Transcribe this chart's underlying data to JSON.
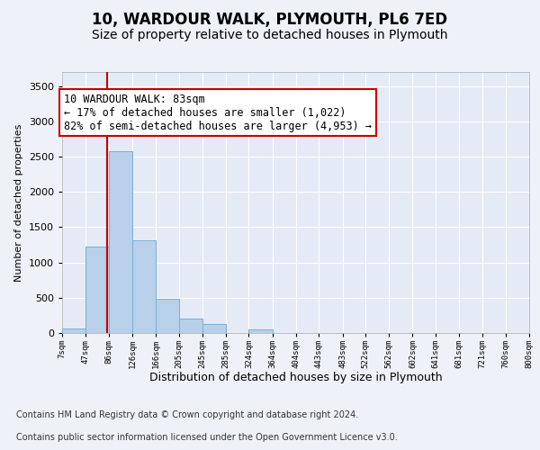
{
  "title": "10, WARDOUR WALK, PLYMOUTH, PL6 7ED",
  "subtitle": "Size of property relative to detached houses in Plymouth",
  "xlabel": "Distribution of detached houses by size in Plymouth",
  "ylabel": "Number of detached properties",
  "bin_edges": [
    7,
    47,
    86,
    126,
    166,
    205,
    245,
    285,
    324,
    364,
    404,
    443,
    483,
    522,
    562,
    602,
    641,
    681,
    721,
    760,
    800
  ],
  "bar_heights": [
    60,
    1220,
    2580,
    1310,
    490,
    205,
    130,
    0,
    50,
    0,
    0,
    0,
    0,
    0,
    0,
    0,
    0,
    0,
    0,
    0
  ],
  "bar_color": "#b8d0ea",
  "bar_edgecolor": "#7aafd4",
  "property_line_x": 83,
  "property_line_color": "#cc0000",
  "annotation_text": "10 WARDOUR WALK: 83sqm\n← 17% of detached houses are smaller (1,022)\n82% of semi-detached houses are larger (4,953) →",
  "annotation_box_color": "#ffffff",
  "annotation_box_edgecolor": "#cc0000",
  "ylim": [
    0,
    3700
  ],
  "yticks": [
    0,
    500,
    1000,
    1500,
    2000,
    2500,
    3000,
    3500
  ],
  "footer_line1": "Contains HM Land Registry data © Crown copyright and database right 2024.",
  "footer_line2": "Contains public sector information licensed under the Open Government Licence v3.0.",
  "background_color": "#eef2f8",
  "plot_background": "#e4eaf6",
  "grid_color": "#ffffff",
  "title_fontsize": 12,
  "subtitle_fontsize": 10,
  "annotation_fontsize": 8.5,
  "footer_fontsize": 7,
  "xlabel_fontsize": 9,
  "ylabel_fontsize": 8,
  "xtick_fontsize": 6.5,
  "ytick_fontsize": 8
}
